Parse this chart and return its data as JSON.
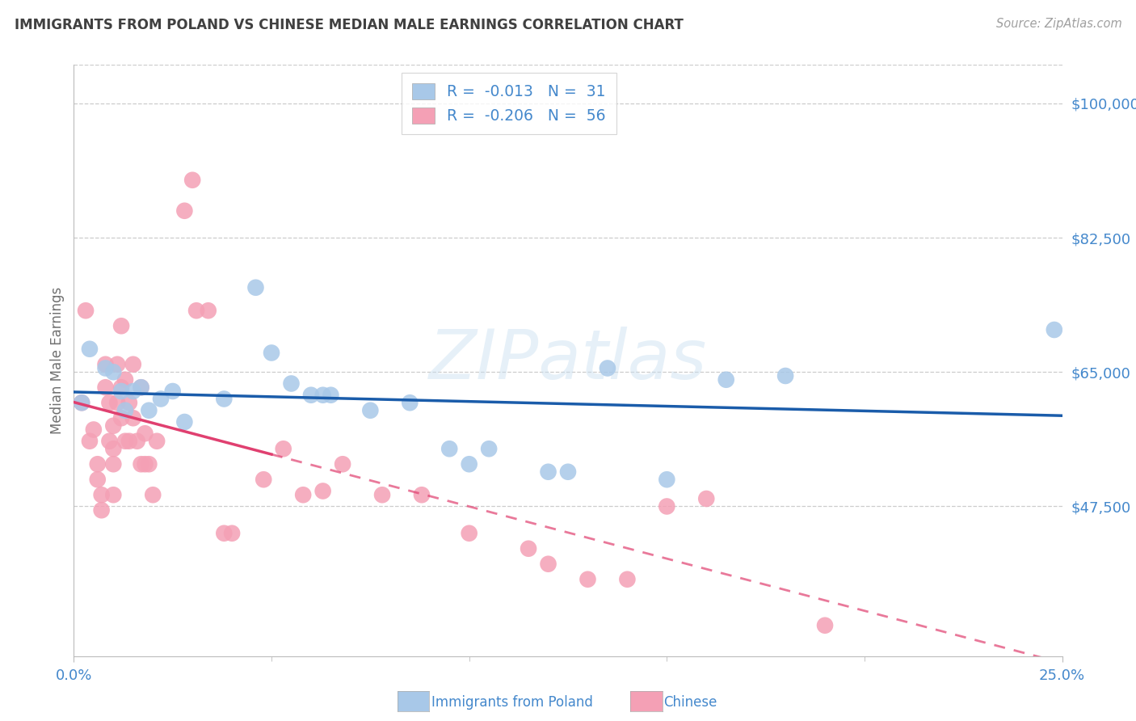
{
  "title": "IMMIGRANTS FROM POLAND VS CHINESE MEDIAN MALE EARNINGS CORRELATION CHART",
  "source": "Source: ZipAtlas.com",
  "ylabel": "Median Male Earnings",
  "x_min": 0.0,
  "x_max": 0.25,
  "y_min": 28000,
  "y_max": 105000,
  "yticks": [
    47500,
    65000,
    82500,
    100000
  ],
  "xticks": [
    0.0,
    0.25
  ],
  "xticklabels": [
    "0.0%",
    "25.0%"
  ],
  "xtick_minor": [
    0.05,
    0.1,
    0.15,
    0.2
  ],
  "watermark": "ZIPatlas",
  "legend_R1": "-0.013",
  "legend_N1": "31",
  "legend_R2": "-0.206",
  "legend_N2": "56",
  "poland_color": "#a8c8e8",
  "chinese_color": "#f4a0b5",
  "poland_line_color": "#1a5caa",
  "chinese_line_color": "#e04070",
  "title_color": "#404040",
  "axis_label_color": "#707070",
  "tick_color": "#4488cc",
  "source_color": "#a0a0a0",
  "grid_color": "#cccccc",
  "legend_label1": "Immigrants from Poland",
  "legend_label2": "Chinese",
  "poland_scatter": [
    [
      0.002,
      61000
    ],
    [
      0.004,
      68000
    ],
    [
      0.008,
      65500
    ],
    [
      0.01,
      65000
    ],
    [
      0.012,
      62500
    ],
    [
      0.013,
      60000
    ],
    [
      0.015,
      62500
    ],
    [
      0.017,
      63000
    ],
    [
      0.019,
      60000
    ],
    [
      0.022,
      61500
    ],
    [
      0.025,
      62500
    ],
    [
      0.028,
      58500
    ],
    [
      0.038,
      61500
    ],
    [
      0.046,
      76000
    ],
    [
      0.05,
      67500
    ],
    [
      0.055,
      63500
    ],
    [
      0.06,
      62000
    ],
    [
      0.063,
      62000
    ],
    [
      0.065,
      62000
    ],
    [
      0.075,
      60000
    ],
    [
      0.085,
      61000
    ],
    [
      0.095,
      55000
    ],
    [
      0.1,
      53000
    ],
    [
      0.105,
      55000
    ],
    [
      0.12,
      52000
    ],
    [
      0.125,
      52000
    ],
    [
      0.135,
      65500
    ],
    [
      0.15,
      51000
    ],
    [
      0.165,
      64000
    ],
    [
      0.18,
      64500
    ],
    [
      0.248,
      70500
    ]
  ],
  "chinese_scatter": [
    [
      0.002,
      61000
    ],
    [
      0.003,
      73000
    ],
    [
      0.004,
      56000
    ],
    [
      0.005,
      57500
    ],
    [
      0.006,
      53000
    ],
    [
      0.006,
      51000
    ],
    [
      0.007,
      49000
    ],
    [
      0.007,
      47000
    ],
    [
      0.008,
      63000
    ],
    [
      0.008,
      66000
    ],
    [
      0.009,
      61000
    ],
    [
      0.009,
      56000
    ],
    [
      0.01,
      53000
    ],
    [
      0.01,
      49000
    ],
    [
      0.01,
      58000
    ],
    [
      0.01,
      55000
    ],
    [
      0.011,
      66000
    ],
    [
      0.011,
      61000
    ],
    [
      0.012,
      63000
    ],
    [
      0.012,
      59000
    ],
    [
      0.012,
      71000
    ],
    [
      0.013,
      56000
    ],
    [
      0.013,
      64000
    ],
    [
      0.014,
      56000
    ],
    [
      0.014,
      61000
    ],
    [
      0.015,
      66000
    ],
    [
      0.015,
      59000
    ],
    [
      0.016,
      56000
    ],
    [
      0.017,
      63000
    ],
    [
      0.017,
      53000
    ],
    [
      0.018,
      57000
    ],
    [
      0.018,
      53000
    ],
    [
      0.019,
      53000
    ],
    [
      0.02,
      49000
    ],
    [
      0.021,
      56000
    ],
    [
      0.028,
      86000
    ],
    [
      0.03,
      90000
    ],
    [
      0.031,
      73000
    ],
    [
      0.034,
      73000
    ],
    [
      0.038,
      44000
    ],
    [
      0.04,
      44000
    ],
    [
      0.048,
      51000
    ],
    [
      0.053,
      55000
    ],
    [
      0.058,
      49000
    ],
    [
      0.063,
      49500
    ],
    [
      0.068,
      53000
    ],
    [
      0.078,
      49000
    ],
    [
      0.088,
      49000
    ],
    [
      0.1,
      44000
    ],
    [
      0.115,
      42000
    ],
    [
      0.12,
      40000
    ],
    [
      0.13,
      38000
    ],
    [
      0.14,
      38000
    ],
    [
      0.15,
      47500
    ],
    [
      0.16,
      48500
    ],
    [
      0.19,
      32000
    ]
  ]
}
